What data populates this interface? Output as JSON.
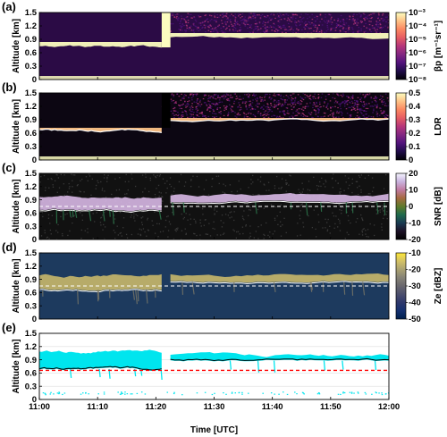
{
  "figure": {
    "x_axis": {
      "label": "Time [UTC]",
      "ticks": [
        "11:00",
        "11:10",
        "11:20",
        "11:30",
        "11:40",
        "11:50",
        "12:00"
      ],
      "range_min": [
        0,
        60
      ]
    },
    "panels": [
      {
        "letter": "(a)",
        "ylabel": "Altitude [km]",
        "yticks": [
          "0",
          "0.3",
          "0.6",
          "0.9",
          "1.2",
          "1.5"
        ],
        "colorbar": {
          "label": "βp [m⁻¹sr⁻¹]",
          "ticks": [
            "10⁻³",
            "10⁻⁴",
            "10⁻⁵",
            "10⁻⁶",
            "10⁻⁷",
            "10⁻⁸"
          ],
          "colormap": "magma"
        }
      },
      {
        "letter": "(b)",
        "ylabel": "Altitude [km]",
        "yticks": [
          "0",
          "0.3",
          "0.6",
          "0.9",
          "1.2",
          "1.5"
        ],
        "colorbar": {
          "label": "LDR",
          "ticks": [
            "0.5",
            "0.4",
            "0.3",
            "0.2",
            "0.1",
            "0"
          ],
          "colormap": "magma"
        }
      },
      {
        "letter": "(c)",
        "ylabel": "Altitude [km]",
        "yticks": [
          "0",
          "0.3",
          "0.6",
          "0.9",
          "1.2",
          "1.5"
        ],
        "colorbar": {
          "label": "SNR [dB]",
          "ticks": [
            "20",
            "10",
            "0",
            "-10",
            "-20"
          ],
          "colormap": "cubehelix"
        }
      },
      {
        "letter": "(d)",
        "ylabel": "Altitude [km]",
        "yticks": [
          "0",
          "0.3",
          "0.6",
          "0.9",
          "1.2",
          "1.5"
        ],
        "colorbar": {
          "label": "Ze [dBZ]",
          "ticks": [
            "-10",
            "-20",
            "-30",
            "-40",
            "-50"
          ],
          "colormap": "cividis"
        }
      },
      {
        "letter": "(e)",
        "ylabel": "Altitude [km]",
        "yticks": [
          "0",
          "0.3",
          "0.6",
          "0.9",
          "1.2",
          "1.5"
        ]
      }
    ]
  },
  "chart_data": [
    {
      "type": "heatmap",
      "variable": "βp",
      "x_range_min": [
        0,
        60
      ],
      "ylim_km": [
        0,
        1.5
      ],
      "cloud_base_km": {
        "11:00-11:21": 0.72,
        "11:22-12:00": 0.92
      },
      "gap_min": [
        21,
        22
      ],
      "clim": [
        1e-08,
        0.001
      ],
      "log_scale": true
    },
    {
      "type": "heatmap",
      "variable": "LDR",
      "x_range_min": [
        0,
        60
      ],
      "ylim_km": [
        0,
        1.5
      ],
      "cloud_base_km": {
        "11:00-11:21": 0.66,
        "11:22-12:00": 0.88
      },
      "clim": [
        0,
        0.5
      ]
    },
    {
      "type": "heatmap",
      "variable": "SNR",
      "x_range_min": [
        0,
        60
      ],
      "ylim_km": [
        0,
        1.5
      ],
      "reference_line_km": 0.75,
      "clim": [
        -25,
        20
      ]
    },
    {
      "type": "heatmap",
      "variable": "Ze",
      "x_range_min": [
        0,
        60
      ],
      "ylim_km": [
        0,
        1.5
      ],
      "reference_line_km": 0.75,
      "clim": [
        -50,
        -10
      ]
    },
    {
      "type": "scatter",
      "series": [
        {
          "color": "#00e5ee",
          "description": "cloud mask"
        },
        {
          "color": "#000000",
          "description": "cloud base line"
        },
        {
          "color": "#ff0000",
          "description": "dashed reference"
        }
      ],
      "x_range_min": [
        0,
        60
      ],
      "ylim_km": [
        0,
        1.5
      ],
      "reference_line_km": 0.66,
      "cloud_base_km": {
        "11:00-11:21": 0.69,
        "11:22-12:00": 0.9
      }
    }
  ],
  "colors": {
    "cyan": "#00e5ee",
    "red_dash": "#ff0000",
    "white_dash": "#ffffff",
    "ze_bg": "#1d3a5e",
    "snr_bg": "#111111"
  }
}
